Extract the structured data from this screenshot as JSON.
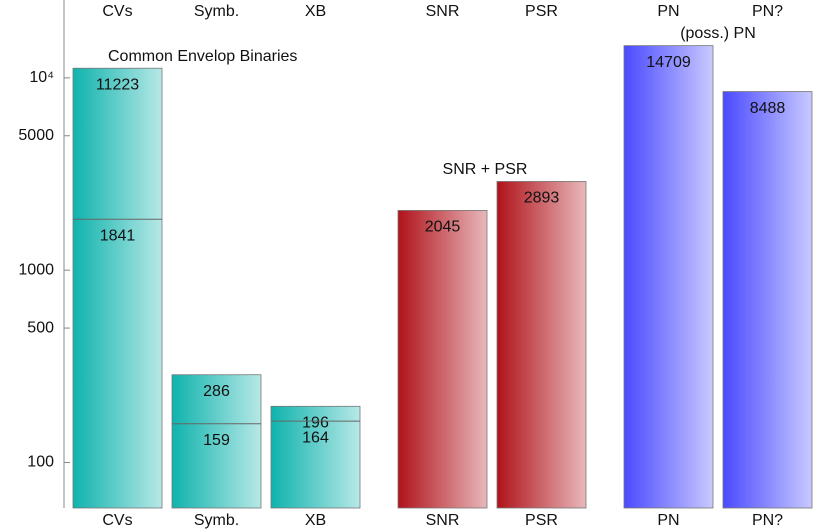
{
  "chart_data": {
    "type": "bar",
    "log_scale": true,
    "categories": [
      "CVs",
      "Symb.",
      "XB",
      "SNR",
      "PSR",
      "PN",
      "PN?"
    ],
    "values": [
      11223,
      286,
      196,
      2045,
      2893,
      14709,
      8488
    ],
    "sub_values": [
      1841,
      159,
      164,
      null,
      null,
      null,
      null
    ],
    "colors": [
      "#0fb3ad",
      "#0fb3ad",
      "#0fb3ad",
      "#b0121a",
      "#b0121a",
      "#4a4aff",
      "#4a4aff"
    ],
    "annotations": [
      "Common Envelop Binaries",
      "SNR + PSR",
      "(poss.) PN"
    ],
    "ylim": [
      58,
      25400
    ],
    "yticks": [
      100,
      500,
      1000,
      5000,
      {
        "value": 10000,
        "label": "10⁴"
      }
    ]
  }
}
